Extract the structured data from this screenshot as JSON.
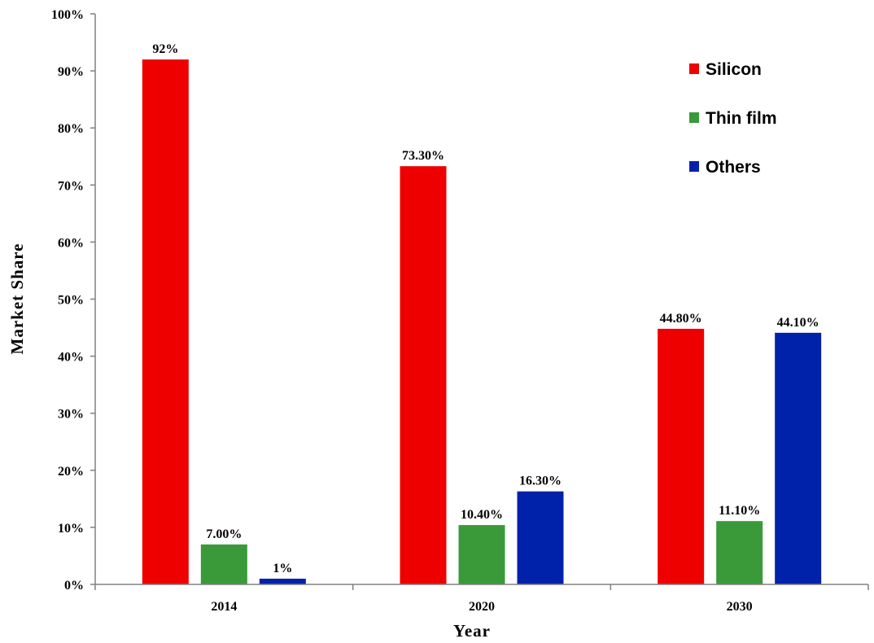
{
  "chart_data": {
    "type": "bar",
    "categories": [
      "2014",
      "2020",
      "2030"
    ],
    "series": [
      {
        "name": "Silicon",
        "color": "#ee0000",
        "values": [
          92,
          73.3,
          44.8
        ],
        "labels": [
          "92%",
          "73.30%",
          "44.80%"
        ]
      },
      {
        "name": "Thin film",
        "color": "#3a9a3a",
        "values": [
          7.0,
          10.4,
          11.1
        ],
        "labels": [
          "7.00%",
          "10.40%",
          "11.10%"
        ]
      },
      {
        "name": "Others",
        "color": "#0022aa",
        "values": [
          1,
          16.3,
          44.1
        ],
        "labels": [
          "1%",
          "16.30%",
          "44.10%"
        ]
      }
    ],
    "title": "",
    "xlabel": "Year",
    "ylabel": "Market Share",
    "ylim": [
      0,
      100
    ],
    "yticks": [
      "0%",
      "10%",
      "20%",
      "30%",
      "40%",
      "50%",
      "60%",
      "70%",
      "80%",
      "90%",
      "100%"
    ],
    "grid": false,
    "legend_position": "top-right"
  }
}
